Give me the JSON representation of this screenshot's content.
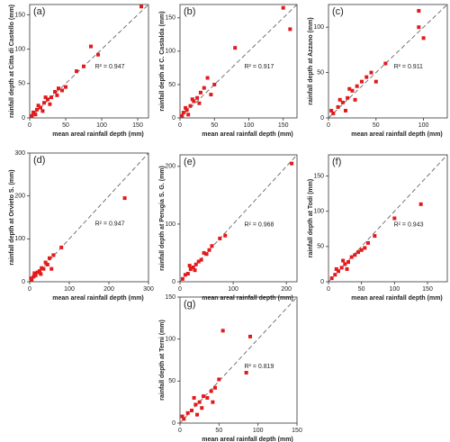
{
  "chart_data": [
    {
      "type": "scatter",
      "label": "(a)",
      "y_label": "rainfall depth at Citta di Castello (mm)",
      "x_label": "mean areal rainfall depth (mm)",
      "annotation": "R² = 0.947",
      "color": "#e31a1c",
      "x": [
        155,
        85,
        95,
        65,
        75,
        50,
        45,
        40,
        35,
        30,
        25,
        20,
        15,
        10,
        8,
        5,
        3,
        28,
        22,
        12,
        38,
        18
      ],
      "values": [
        162,
        104,
        92,
        68,
        75,
        45,
        40,
        43,
        38,
        30,
        27,
        22,
        15,
        12,
        5,
        8,
        3,
        20,
        30,
        18,
        33,
        10
      ],
      "xlim": [
        0,
        165
      ],
      "ylim": [
        0,
        165
      ],
      "xticks": [
        0,
        50,
        100,
        150
      ],
      "yticks": [
        0,
        50,
        100,
        150
      ]
    },
    {
      "type": "scatter",
      "label": "(b)",
      "y_label": "rainfall depth at C. Castalda (mm)",
      "x_label": "mean areal rainfall depth (mm)",
      "annotation": "R² = 0.917",
      "color": "#e31a1c",
      "x": [
        150,
        160,
        80,
        40,
        35,
        30,
        25,
        20,
        15,
        10,
        5,
        3,
        45,
        28,
        18,
        12,
        8,
        50
      ],
      "values": [
        165,
        133,
        105,
        60,
        45,
        38,
        30,
        25,
        18,
        12,
        8,
        3,
        35,
        22,
        28,
        5,
        15,
        50
      ],
      "xlim": [
        0,
        170
      ],
      "ylim": [
        0,
        170
      ],
      "xticks": [
        0,
        50,
        100,
        150
      ],
      "yticks": [
        0,
        50,
        100,
        150
      ]
    },
    {
      "type": "scatter",
      "label": "(c)",
      "y_label": "rainfall depth at Azzano (mm)",
      "x_label": "mean areal rainfall depth (mm)",
      "annotation": "R² = 0.911",
      "color": "#e31a1c",
      "x": [
        95,
        95,
        100,
        60,
        45,
        40,
        35,
        30,
        25,
        20,
        15,
        10,
        5,
        3,
        28,
        22,
        12,
        50,
        18
      ],
      "values": [
        118,
        100,
        88,
        60,
        50,
        45,
        40,
        35,
        30,
        22,
        17,
        12,
        5,
        8,
        20,
        32,
        20,
        40,
        8
      ],
      "xlim": [
        0,
        125
      ],
      "ylim": [
        0,
        125
      ],
      "xticks": [
        0,
        50,
        100
      ],
      "yticks": [
        0,
        50,
        100
      ]
    },
    {
      "type": "scatter",
      "label": "(d)",
      "y_label": "rainfall depth at Orvieto S. (mm)",
      "x_label": "mean areal rainfall depth (mm)",
      "annotation": "R² = 0.947",
      "color": "#e31a1c",
      "x": [
        240,
        80,
        60,
        50,
        45,
        40,
        35,
        30,
        25,
        20,
        15,
        10,
        5,
        3,
        55,
        28,
        12
      ],
      "values": [
        195,
        80,
        62,
        55,
        40,
        45,
        30,
        32,
        25,
        22,
        15,
        12,
        5,
        8,
        30,
        18,
        20
      ],
      "xlim": [
        0,
        300
      ],
      "ylim": [
        0,
        300
      ],
      "xticks": [
        0,
        100,
        200,
        300
      ],
      "yticks": [
        0,
        100,
        200,
        300
      ]
    },
    {
      "type": "scatter",
      "label": "(e)",
      "y_label": "rainfall depth at Perugia S. G. (mm)",
      "x_label": "mean areal rainfall depth (mm)",
      "annotation": "R² = 0.968",
      "color": "#e31a1c",
      "x": [
        210,
        85,
        75,
        60,
        55,
        50,
        45,
        40,
        35,
        30,
        25,
        20,
        15,
        10,
        5,
        28,
        18
      ],
      "values": [
        205,
        80,
        75,
        62,
        55,
        48,
        50,
        38,
        35,
        30,
        25,
        22,
        14,
        12,
        5,
        20,
        28
      ],
      "xlim": [
        0,
        220
      ],
      "ylim": [
        0,
        220
      ],
      "xticks": [
        0,
        100,
        200
      ],
      "yticks": [
        0,
        100,
        200
      ]
    },
    {
      "type": "scatter",
      "label": "(f)",
      "y_label": "rainfall depth at Todi (mm)",
      "x_label": "mean areal rainfall depth (mm)",
      "annotation": "R² = 0.943",
      "color": "#e31a1c",
      "x": [
        140,
        100,
        70,
        60,
        55,
        50,
        45,
        40,
        35,
        30,
        25,
        20,
        15,
        10,
        5,
        28,
        22,
        12
      ],
      "values": [
        110,
        90,
        65,
        55,
        48,
        45,
        42,
        38,
        35,
        28,
        25,
        20,
        15,
        10,
        5,
        18,
        30,
        18
      ],
      "xlim": [
        0,
        180
      ],
      "ylim": [
        0,
        180
      ],
      "xticks": [
        0,
        50,
        100,
        150
      ],
      "yticks": [
        0,
        50,
        100,
        150
      ]
    },
    {
      "type": "scatter",
      "label": "(g)",
      "y_label": "rainfall depth at Terni (mm)",
      "x_label": "mean areal rainfall depth (mm)",
      "annotation": "R² = 0.819",
      "color": "#e31a1c",
      "x": [
        55,
        90,
        85,
        50,
        45,
        40,
        35,
        30,
        25,
        20,
        15,
        10,
        5,
        3,
        28,
        18,
        22,
        42
      ],
      "values": [
        110,
        103,
        60,
        52,
        42,
        38,
        30,
        32,
        25,
        22,
        15,
        12,
        5,
        8,
        18,
        30,
        10,
        25
      ],
      "xlim": [
        0,
        150
      ],
      "ylim": [
        0,
        150
      ],
      "xticks": [
        0,
        50,
        100,
        150
      ],
      "yticks": [
        0,
        50,
        100,
        150
      ]
    }
  ]
}
